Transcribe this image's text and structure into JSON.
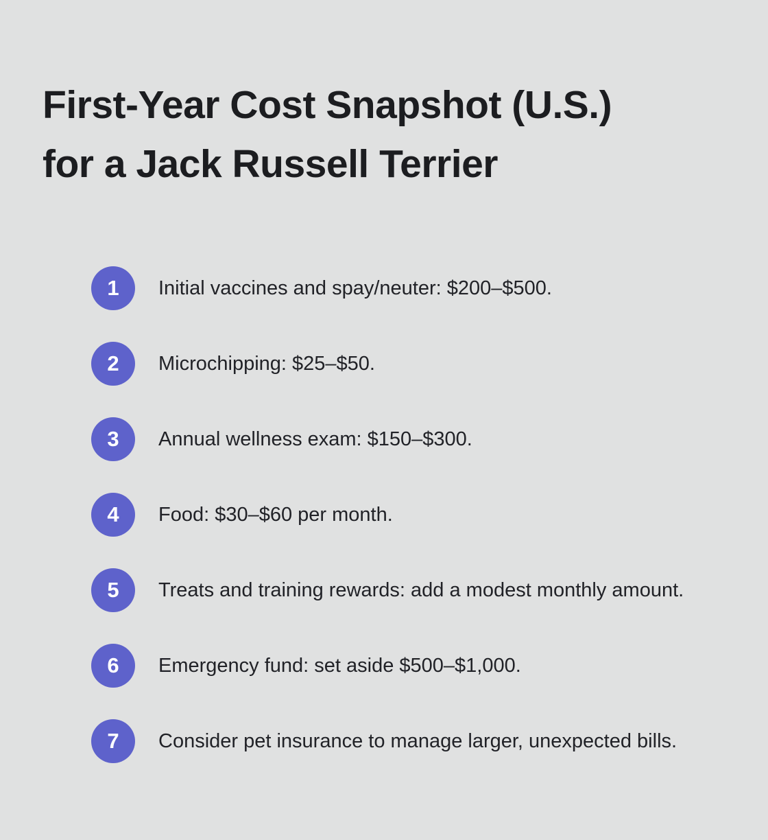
{
  "page": {
    "background_color": "#e0e1e1",
    "badge_color": "#5e62cb",
    "badge_text_color": "#ffffff",
    "text_color": "#212227"
  },
  "title": {
    "line1": "First-Year Cost Snapshot (U.S.)",
    "line2": "for a Jack Russell Terrier"
  },
  "list": {
    "items": [
      {
        "number": "1",
        "text": "Initial vaccines and spay/neuter: $200–$500."
      },
      {
        "number": "2",
        "text": "Microchipping: $25–$50."
      },
      {
        "number": "3",
        "text": "Annual wellness exam: $150–$300."
      },
      {
        "number": "4",
        "text": "Food: $30–$60 per month."
      },
      {
        "number": "5",
        "text": "Treats and training rewards: add a modest monthly amount."
      },
      {
        "number": "6",
        "text": "Emergency fund: set aside $500–$1,000."
      },
      {
        "number": "7",
        "text": "Consider pet insurance to manage larger, unexpected bills."
      }
    ]
  }
}
